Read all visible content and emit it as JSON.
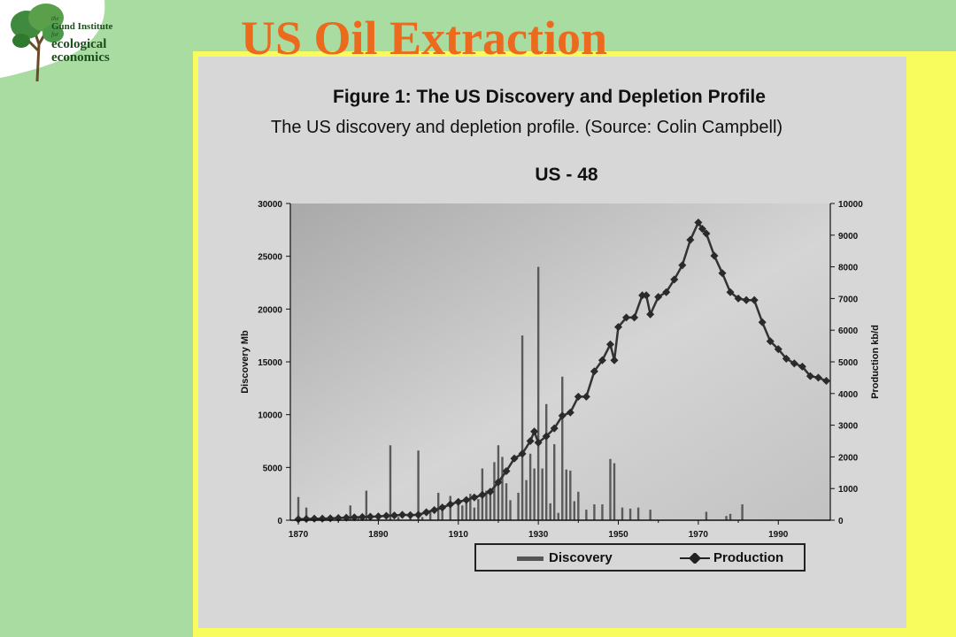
{
  "slide": {
    "title": "US Oil Extraction",
    "logo": {
      "line1": "the",
      "line2": "Gund Institute",
      "line3": "for",
      "line4": "ecological",
      "line5": "economics"
    },
    "colors": {
      "background": "#a8dca0",
      "accent": "#f8fc5c",
      "title": "#ec6a1d"
    }
  },
  "figure": {
    "title": "Figure 1: The US Discovery and Depletion Profile",
    "subtitle": "The US discovery and depletion profile. (Source: Colin Campbell)"
  },
  "chart_data": {
    "type": "bar",
    "title": "US - 48",
    "xlabel": "",
    "ylabel": "Discovery Mb",
    "y2label": "Production kb/d",
    "xlim": [
      1868,
      2003
    ],
    "ylim": [
      0,
      30000
    ],
    "y2lim": [
      0,
      10000
    ],
    "x_ticks": [
      "1870",
      "1890",
      "1910",
      "1930",
      "1950",
      "1970",
      "1990"
    ],
    "y_ticks": [
      "0",
      "5000",
      "10000",
      "15000",
      "20000",
      "25000",
      "30000"
    ],
    "y2_ticks": [
      "0",
      "1000",
      "2000",
      "3000",
      "4000",
      "5000",
      "6000",
      "7000",
      "8000",
      "9000",
      "10000"
    ],
    "grid": false,
    "legend": "bottom",
    "series": [
      {
        "name": "Discovery",
        "kind": "bar",
        "x": [
          1870,
          1872,
          1876,
          1880,
          1883,
          1885,
          1887,
          1888,
          1893,
          1895,
          1898,
          1900,
          1901,
          1903,
          1905,
          1906,
          1908,
          1910,
          1911,
          1912,
          1913,
          1914,
          1915,
          1916,
          1917,
          1918,
          1919,
          1920,
          1921,
          1922,
          1923,
          1925,
          1926,
          1927,
          1928,
          1929,
          1930,
          1931,
          1932,
          1933,
          1934,
          1935,
          1936,
          1937,
          1938,
          1939,
          1940,
          1942,
          1944,
          1946,
          1948,
          1949,
          1951,
          1953,
          1955,
          1958,
          1972,
          1977,
          1978,
          1981
        ],
        "values": [
          2200,
          1200,
          400,
          500,
          1400,
          300,
          2800,
          500,
          7100,
          300,
          200,
          6600,
          300,
          800,
          2600,
          1000,
          2300,
          1600,
          1400,
          1900,
          2500,
          1200,
          2000,
          4900,
          2800,
          3000,
          5500,
          7100,
          6000,
          3500,
          1900,
          2600,
          17500,
          3800,
          6300,
          4900,
          24000,
          4900,
          11000,
          1600,
          7200,
          700,
          13600,
          4800,
          4700,
          1800,
          2700,
          1000,
          1500,
          1500,
          5800,
          5400,
          1200,
          1100,
          1200,
          1000,
          800,
          400,
          600,
          1500
        ]
      },
      {
        "name": "Production",
        "kind": "line",
        "axis": "y2",
        "x": [
          1870,
          1872,
          1874,
          1876,
          1878,
          1880,
          1882,
          1884,
          1886,
          1888,
          1890,
          1892,
          1894,
          1896,
          1898,
          1900,
          1902,
          1904,
          1906,
          1908,
          1910,
          1912,
          1914,
          1916,
          1918,
          1920,
          1922,
          1924,
          1926,
          1928,
          1929,
          1930,
          1932,
          1934,
          1936,
          1938,
          1940,
          1942,
          1944,
          1946,
          1948,
          1949,
          1950,
          1952,
          1954,
          1956,
          1957,
          1958,
          1960,
          1962,
          1964,
          1966,
          1968,
          1970,
          1971,
          1972,
          1974,
          1976,
          1978,
          1980,
          1982,
          1984,
          1986,
          1988,
          1990,
          1992,
          1994,
          1996,
          1998,
          2000,
          2002
        ],
        "values": [
          30,
          40,
          50,
          50,
          60,
          70,
          80,
          90,
          100,
          110,
          120,
          140,
          150,
          170,
          160,
          170,
          250,
          320,
          400,
          500,
          580,
          640,
          720,
          800,
          900,
          1200,
          1550,
          1950,
          2100,
          2500,
          2800,
          2450,
          2650,
          2900,
          3300,
          3400,
          3900,
          3900,
          4700,
          5050,
          5550,
          5050,
          6100,
          6400,
          6400,
          7100,
          7100,
          6500,
          7050,
          7200,
          7600,
          8050,
          8850,
          9400,
          9200,
          9050,
          8350,
          7800,
          7200,
          7000,
          6950,
          6950,
          6250,
          5650,
          5400,
          5100,
          4950,
          4850,
          4550,
          4500,
          4400
        ]
      }
    ]
  }
}
